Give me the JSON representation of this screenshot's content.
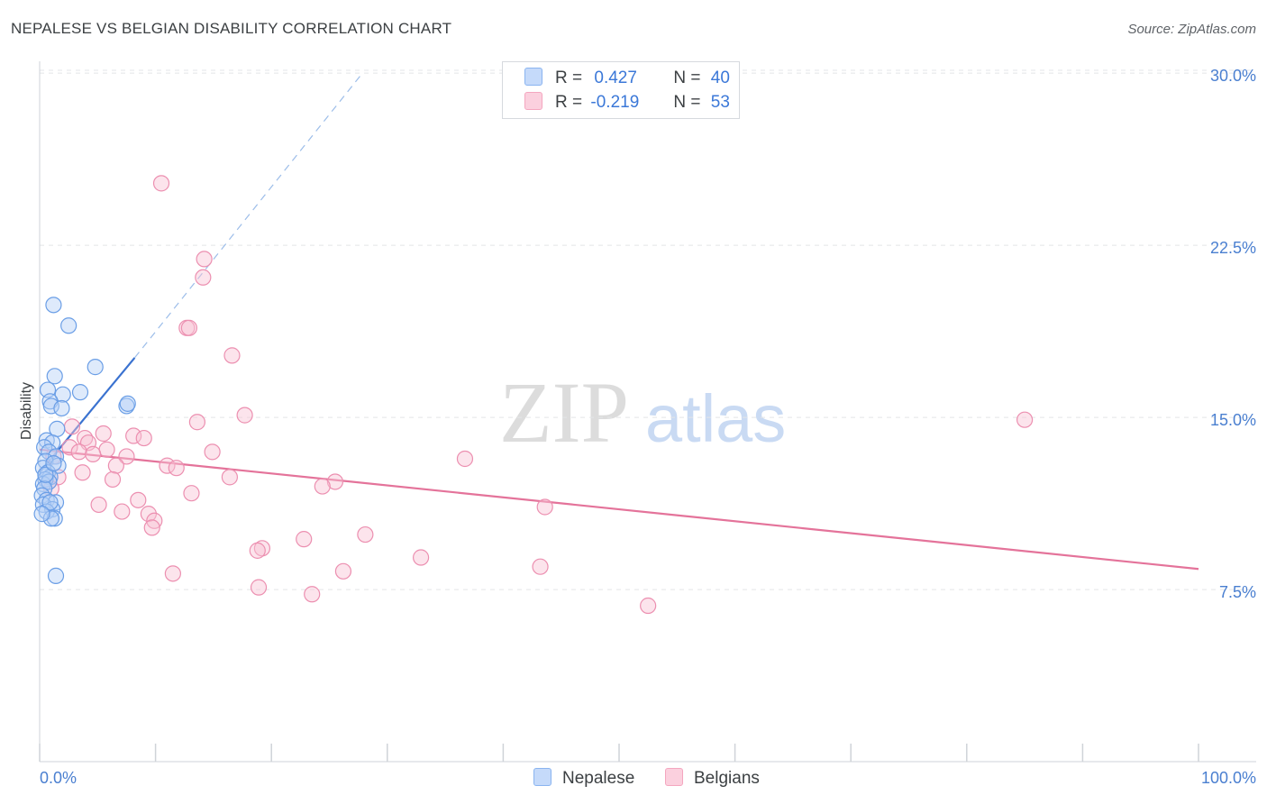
{
  "title": "NEPALESE VS BELGIAN DISABILITY CORRELATION CHART",
  "source": "Source: ZipAtlas.com",
  "watermark": {
    "zip": "ZIP",
    "atlas": "atlas"
  },
  "legend": {
    "nepalese": {
      "r_label": "R =",
      "r_value": "0.427",
      "n_label": "N =",
      "n_value": "40",
      "color": "#8ab4f0"
    },
    "belgians": {
      "r_label": "R =",
      "r_value": "-0.219",
      "n_label": "N =",
      "n_value": "53",
      "color": "#f4a6bf"
    }
  },
  "bottom_legend": {
    "nepalese": "Nepalese",
    "belgians": "Belgians"
  },
  "chart_data": {
    "type": "scatter",
    "title": "NEPALESE VS BELGIAN DISABILITY CORRELATION CHART",
    "xlabel": "",
    "ylabel": "Disability",
    "xlim": [
      0,
      100
    ],
    "ylim": [
      0,
      31
    ],
    "x_tick_labels": [
      "0.0%",
      "100.0%"
    ],
    "y_ticks": [
      7.5,
      15.0,
      22.5,
      30.0
    ],
    "y_tick_labels": [
      "7.5%",
      "15.0%",
      "22.5%",
      "30.0%"
    ],
    "series": [
      {
        "name": "Nepalese",
        "color": "#8ab4f0",
        "line_color": "#3a72d0",
        "trend": {
          "x0": 0,
          "y0": 12.6,
          "x1": 8.2,
          "y1": 17.6,
          "dash_to_x": 27.7,
          "dash_to_y": 29.9
        },
        "points": [
          [
            1.2,
            19.9
          ],
          [
            2.5,
            19.0
          ],
          [
            4.8,
            17.2
          ],
          [
            1.3,
            16.8
          ],
          [
            0.7,
            16.2
          ],
          [
            3.5,
            16.1
          ],
          [
            2.0,
            16.0
          ],
          [
            0.9,
            15.7
          ],
          [
            1.0,
            15.5
          ],
          [
            1.9,
            15.4
          ],
          [
            7.5,
            15.5
          ],
          [
            7.6,
            15.6
          ],
          [
            1.5,
            14.5
          ],
          [
            0.6,
            14.0
          ],
          [
            1.1,
            13.9
          ],
          [
            0.4,
            13.7
          ],
          [
            0.8,
            13.5
          ],
          [
            1.4,
            13.3
          ],
          [
            0.5,
            13.1
          ],
          [
            1.6,
            12.9
          ],
          [
            0.3,
            12.8
          ],
          [
            0.7,
            12.6
          ],
          [
            0.9,
            12.4
          ],
          [
            0.5,
            12.3
          ],
          [
            0.3,
            12.1
          ],
          [
            0.8,
            12.2
          ],
          [
            0.4,
            11.9
          ],
          [
            0.2,
            11.6
          ],
          [
            0.6,
            11.4
          ],
          [
            1.4,
            11.3
          ],
          [
            0.3,
            11.2
          ],
          [
            1.1,
            11.0
          ],
          [
            0.6,
            10.9
          ],
          [
            1.3,
            10.6
          ],
          [
            1.0,
            10.6
          ],
          [
            0.9,
            11.3
          ],
          [
            1.4,
            8.1
          ],
          [
            0.2,
            10.8
          ],
          [
            0.5,
            12.5
          ],
          [
            1.2,
            13.0
          ]
        ]
      },
      {
        "name": "Belgians",
        "color": "#f4a6bf",
        "line_color": "#e4739a",
        "trend": {
          "x0": 0,
          "y0": 13.6,
          "x1": 100,
          "y1": 8.4
        },
        "points": [
          [
            10.5,
            25.2
          ],
          [
            14.2,
            21.9
          ],
          [
            14.1,
            21.1
          ],
          [
            12.7,
            18.9
          ],
          [
            12.9,
            18.9
          ],
          [
            16.6,
            17.7
          ],
          [
            17.7,
            15.1
          ],
          [
            85.0,
            14.9
          ],
          [
            13.6,
            14.8
          ],
          [
            2.8,
            14.6
          ],
          [
            5.5,
            14.3
          ],
          [
            8.1,
            14.2
          ],
          [
            3.9,
            14.1
          ],
          [
            4.2,
            13.9
          ],
          [
            9.0,
            14.1
          ],
          [
            2.6,
            13.7
          ],
          [
            5.8,
            13.6
          ],
          [
            14.9,
            13.5
          ],
          [
            3.4,
            13.5
          ],
          [
            4.6,
            13.4
          ],
          [
            7.5,
            13.3
          ],
          [
            36.7,
            13.2
          ],
          [
            1.2,
            13.3
          ],
          [
            6.6,
            12.9
          ],
          [
            11.0,
            12.9
          ],
          [
            11.8,
            12.8
          ],
          [
            3.7,
            12.6
          ],
          [
            1.6,
            12.4
          ],
          [
            16.4,
            12.4
          ],
          [
            6.3,
            12.3
          ],
          [
            0.8,
            12.2
          ],
          [
            25.5,
            12.2
          ],
          [
            24.4,
            12.0
          ],
          [
            1.0,
            11.9
          ],
          [
            13.1,
            11.7
          ],
          [
            8.5,
            11.4
          ],
          [
            5.1,
            11.2
          ],
          [
            43.6,
            11.1
          ],
          [
            7.1,
            10.9
          ],
          [
            9.4,
            10.8
          ],
          [
            9.9,
            10.5
          ],
          [
            9.7,
            10.2
          ],
          [
            28.1,
            9.9
          ],
          [
            22.8,
            9.7
          ],
          [
            19.2,
            9.3
          ],
          [
            18.8,
            9.2
          ],
          [
            32.9,
            8.9
          ],
          [
            43.2,
            8.5
          ],
          [
            26.2,
            8.3
          ],
          [
            11.5,
            8.2
          ],
          [
            18.9,
            7.6
          ],
          [
            23.5,
            7.3
          ],
          [
            52.5,
            6.8
          ]
        ]
      }
    ]
  }
}
